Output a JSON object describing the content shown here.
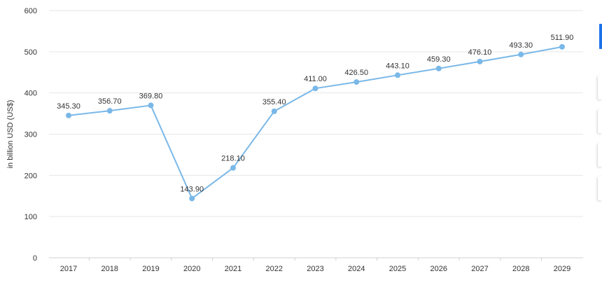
{
  "chart_data": {
    "type": "line",
    "title": "",
    "ylabel": "in billion USD (US$)",
    "xlabel": "",
    "ylim": [
      0,
      600
    ],
    "yticks": [
      0,
      100,
      200,
      300,
      400,
      500,
      600
    ],
    "grid": true,
    "categories": [
      "2017",
      "2018",
      "2019",
      "2020",
      "2021",
      "2022",
      "2023",
      "2024",
      "2025",
      "2026",
      "2027",
      "2028",
      "2029"
    ],
    "series": [
      {
        "values": [
          345.3,
          356.7,
          369.8,
          143.9,
          218.1,
          355.4,
          411.0,
          426.5,
          443.1,
          459.3,
          476.1,
          493.3,
          511.9
        ],
        "labels": [
          "345.30",
          "356.70",
          "369.80",
          "143.90",
          "218.10",
          "355.40",
          "411.00",
          "426.50",
          "443.10",
          "459.30",
          "476.10",
          "493.30",
          "511.90"
        ]
      }
    ],
    "colors": {
      "line": "#7ab8e8",
      "point": "#7ab8e8",
      "grid": "#e6e6e6",
      "text": "#333333",
      "accent": "#1a73e8"
    }
  }
}
